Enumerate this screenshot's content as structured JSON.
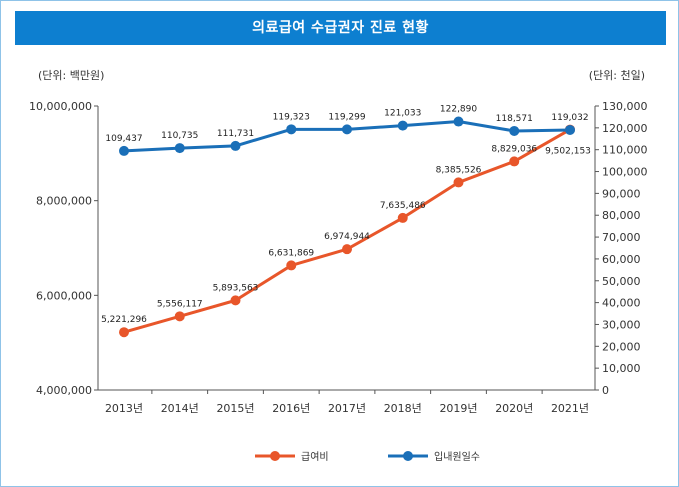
{
  "title": "의료급여 수급권자 진료 현황",
  "chart_data": {
    "type": "line",
    "left_unit": "(단위: 백만원)",
    "right_unit": "(단위: 천일)",
    "categories": [
      "2013년",
      "2014년",
      "2015년",
      "2016년",
      "2017년",
      "2018년",
      "2019년",
      "2020년",
      "2021년"
    ],
    "left_axis": {
      "min": 4000000,
      "max": 10000000,
      "ticks": [
        4000000,
        6000000,
        8000000,
        10000000
      ],
      "tick_labels": [
        "4,000,000",
        "6,000,000",
        "8,000,000",
        "10,000,000"
      ]
    },
    "right_axis": {
      "min": 0,
      "max": 130000,
      "ticks": [
        0,
        10000,
        20000,
        30000,
        40000,
        50000,
        60000,
        70000,
        80000,
        90000,
        100000,
        110000,
        120000,
        130000
      ],
      "tick_labels": [
        "0",
        "10,000",
        "20,000",
        "30,000",
        "40,000",
        "50,000",
        "60,000",
        "70,000",
        "80,000",
        "90,000",
        "100,000",
        "110,000",
        "120,000",
        "130,000"
      ]
    },
    "series": [
      {
        "name": "급여비",
        "axis": "left",
        "color": "#e8562a",
        "values": [
          5221296,
          5556117,
          5893563,
          6631869,
          6974944,
          7635486,
          8385526,
          8829036,
          9502153
        ],
        "labels": [
          "5,221,296",
          "5,556,117",
          "5,893,563",
          "6,631,869",
          "6,974,944",
          "7,635,486",
          "8,385,526",
          "8,829,036",
          "9,502,153"
        ]
      },
      {
        "name": "입내원일수",
        "axis": "right",
        "color": "#1a6fb8",
        "values": [
          109437,
          110735,
          111731,
          119323,
          119299,
          121033,
          122890,
          118571,
          119032
        ],
        "labels": [
          "109,437",
          "110,735",
          "111,731",
          "119,323",
          "119,299",
          "121,033",
          "122,890",
          "118,571",
          "119,032"
        ]
      }
    ]
  }
}
